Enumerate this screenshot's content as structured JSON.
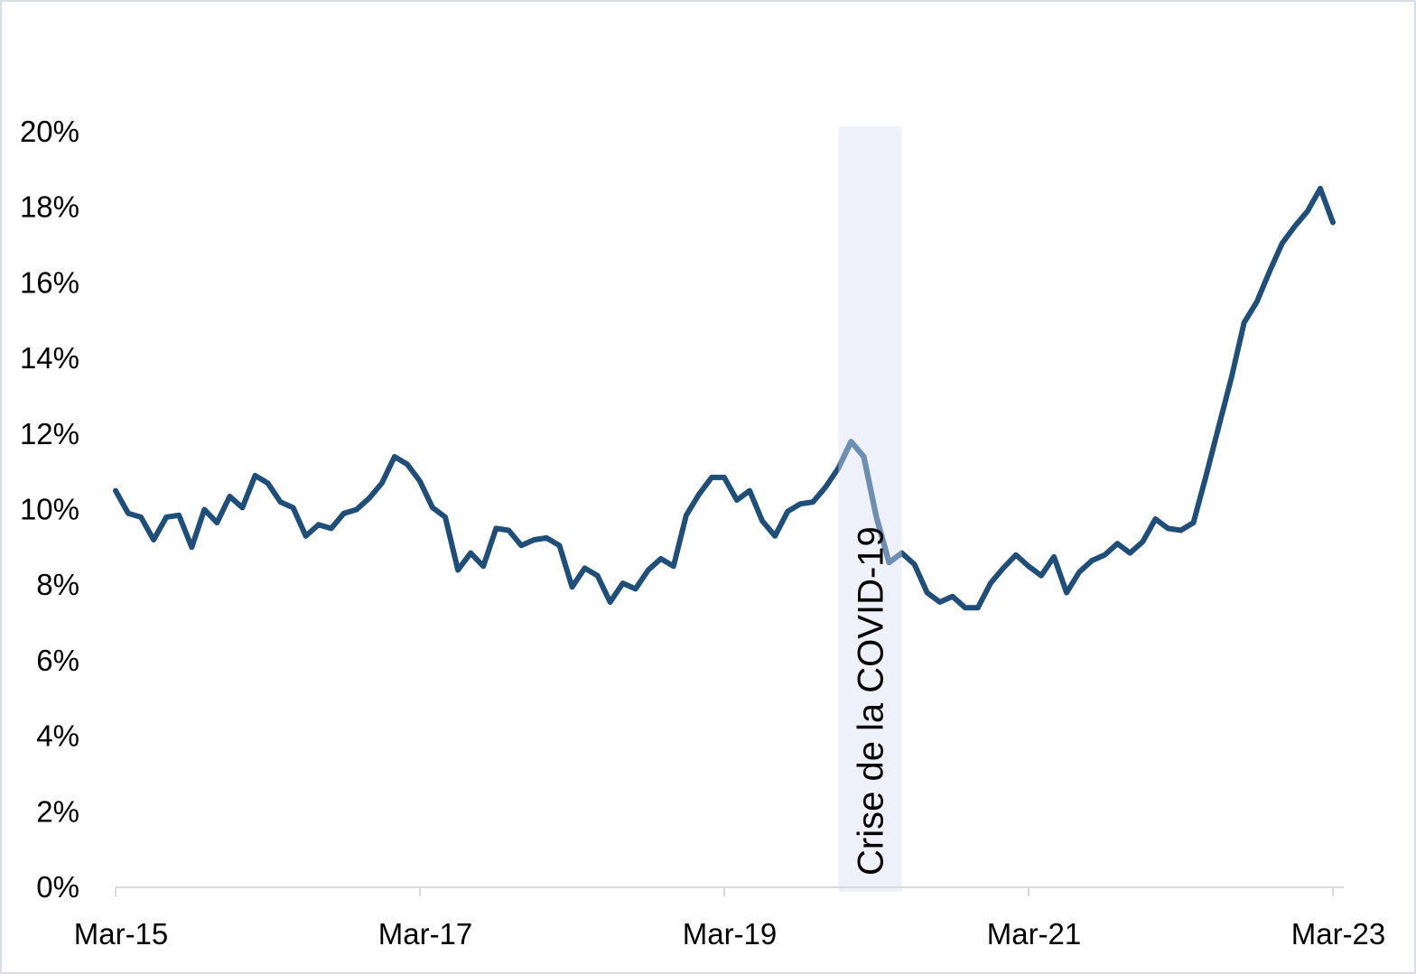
{
  "chart_data": {
    "type": "line",
    "title": "",
    "xlabel": "",
    "ylabel": "",
    "ylim": [
      0,
      20
    ],
    "y_ticks": [
      0,
      2,
      4,
      6,
      8,
      10,
      12,
      14,
      16,
      18,
      20
    ],
    "y_tick_suffix": "%",
    "x_range": [
      "2015-03",
      "2023-03"
    ],
    "x_ticks": [
      {
        "date": "2015-03",
        "label": "Mar-15"
      },
      {
        "date": "2017-03",
        "label": "Mar-17"
      },
      {
        "date": "2019-03",
        "label": "Mar-19"
      },
      {
        "date": "2021-03",
        "label": "Mar-21"
      },
      {
        "date": "2023-03",
        "label": "Mar-23"
      }
    ],
    "grid": false,
    "legend": "none",
    "colors": {
      "line": "#1f4e79",
      "line_in_band": "#6f8fb0",
      "band": "#eef1fa",
      "axis": "#d9d9d9"
    },
    "shaded_period": {
      "start": "2019-12",
      "end": "2020-05",
      "label": "Crise de la COVID-19"
    },
    "series": [
      {
        "name": "",
        "points": [
          [
            "2015-03",
            10.5
          ],
          [
            "2015-04",
            9.9
          ],
          [
            "2015-05",
            9.8
          ],
          [
            "2015-06",
            9.2
          ],
          [
            "2015-07",
            9.8
          ],
          [
            "2015-08",
            9.85
          ],
          [
            "2015-09",
            9.0
          ],
          [
            "2015-10",
            10.0
          ],
          [
            "2015-11",
            9.65
          ],
          [
            "2015-12",
            10.35
          ],
          [
            "2016-01",
            10.05
          ],
          [
            "2016-02",
            10.9
          ],
          [
            "2016-03",
            10.7
          ],
          [
            "2016-04",
            10.2
          ],
          [
            "2016-05",
            10.05
          ],
          [
            "2016-06",
            9.3
          ],
          [
            "2016-07",
            9.6
          ],
          [
            "2016-08",
            9.5
          ],
          [
            "2016-09",
            9.9
          ],
          [
            "2016-10",
            10.0
          ],
          [
            "2016-11",
            10.3
          ],
          [
            "2016-12",
            10.7
          ],
          [
            "2017-01",
            11.4
          ],
          [
            "2017-02",
            11.2
          ],
          [
            "2017-03",
            10.75
          ],
          [
            "2017-04",
            10.05
          ],
          [
            "2017-05",
            9.8
          ],
          [
            "2017-06",
            8.4
          ],
          [
            "2017-07",
            8.85
          ],
          [
            "2017-08",
            8.5
          ],
          [
            "2017-09",
            9.5
          ],
          [
            "2017-10",
            9.45
          ],
          [
            "2017-11",
            9.05
          ],
          [
            "2017-12",
            9.2
          ],
          [
            "2018-01",
            9.25
          ],
          [
            "2018-02",
            9.05
          ],
          [
            "2018-03",
            7.95
          ],
          [
            "2018-04",
            8.45
          ],
          [
            "2018-05",
            8.25
          ],
          [
            "2018-06",
            7.55
          ],
          [
            "2018-07",
            8.05
          ],
          [
            "2018-08",
            7.9
          ],
          [
            "2018-09",
            8.4
          ],
          [
            "2018-10",
            8.7
          ],
          [
            "2018-11",
            8.5
          ],
          [
            "2018-12",
            9.85
          ],
          [
            "2019-01",
            10.4
          ],
          [
            "2019-02",
            10.85
          ],
          [
            "2019-03",
            10.85
          ],
          [
            "2019-04",
            10.25
          ],
          [
            "2019-05",
            10.5
          ],
          [
            "2019-06",
            9.7
          ],
          [
            "2019-07",
            9.3
          ],
          [
            "2019-08",
            9.95
          ],
          [
            "2019-09",
            10.15
          ],
          [
            "2019-10",
            10.2
          ],
          [
            "2019-11",
            10.6
          ],
          [
            "2019-12",
            11.1
          ],
          [
            "2020-01",
            11.8
          ],
          [
            "2020-02",
            11.4
          ],
          [
            "2020-03",
            9.8
          ],
          [
            "2020-04",
            8.6
          ],
          [
            "2020-05",
            8.85
          ],
          [
            "2020-06",
            8.55
          ],
          [
            "2020-07",
            7.8
          ],
          [
            "2020-08",
            7.55
          ],
          [
            "2020-09",
            7.7
          ],
          [
            "2020-10",
            7.4
          ],
          [
            "2020-11",
            7.4
          ],
          [
            "2020-12",
            8.05
          ],
          [
            "2021-01",
            8.45
          ],
          [
            "2021-02",
            8.8
          ],
          [
            "2021-03",
            8.5
          ],
          [
            "2021-04",
            8.25
          ],
          [
            "2021-05",
            8.75
          ],
          [
            "2021-06",
            7.8
          ],
          [
            "2021-07",
            8.35
          ],
          [
            "2021-08",
            8.65
          ],
          [
            "2021-09",
            8.8
          ],
          [
            "2021-10",
            9.1
          ],
          [
            "2021-11",
            8.85
          ],
          [
            "2021-12",
            9.15
          ],
          [
            "2022-01",
            9.75
          ],
          [
            "2022-02",
            9.5
          ],
          [
            "2022-03",
            9.45
          ],
          [
            "2022-04",
            9.65
          ],
          [
            "2022-05",
            10.9
          ],
          [
            "2022-06",
            12.2
          ],
          [
            "2022-07",
            13.5
          ],
          [
            "2022-08",
            14.95
          ],
          [
            "2022-09",
            15.5
          ],
          [
            "2022-10",
            16.3
          ],
          [
            "2022-11",
            17.05
          ],
          [
            "2022-12",
            17.5
          ],
          [
            "2023-01",
            17.9
          ],
          [
            "2023-02",
            18.5
          ],
          [
            "2023-03",
            17.6
          ]
        ]
      }
    ]
  }
}
